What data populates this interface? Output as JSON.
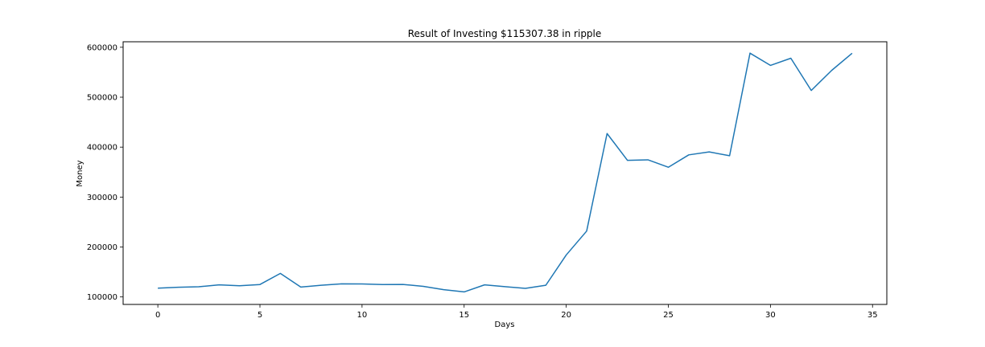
{
  "chart_data": {
    "type": "line",
    "title": "Result of Investing $115307.38 in ripple",
    "xlabel": "Days",
    "ylabel": "Money",
    "xlim": [
      -1.7,
      35.7
    ],
    "ylim": [
      85000,
      611000
    ],
    "xticks": [
      0,
      5,
      10,
      15,
      20,
      25,
      30,
      35
    ],
    "yticks": [
      100000,
      200000,
      300000,
      400000,
      500000,
      600000
    ],
    "grid": false,
    "line_color": "#1f77b4",
    "series": [
      {
        "x": [
          0,
          1,
          2,
          3,
          4,
          5,
          6,
          7,
          8,
          9,
          10,
          11,
          12,
          13,
          14,
          15,
          16,
          17,
          18,
          19,
          20,
          21,
          22,
          23,
          24,
          25,
          26,
          27,
          28,
          29,
          30,
          31,
          32,
          33,
          34
        ],
        "values": [
          117500,
          119300,
          120300,
          124300,
          122500,
          124900,
          147100,
          119800,
          123400,
          126300,
          126100,
          124800,
          125100,
          121200,
          114500,
          110100,
          124200,
          120600,
          117100,
          123400,
          184000,
          231900,
          427200,
          373500,
          374600,
          359700,
          384500,
          390400,
          382800,
          588200,
          563700,
          578000,
          513500,
          553700,
          588000
        ]
      }
    ]
  }
}
